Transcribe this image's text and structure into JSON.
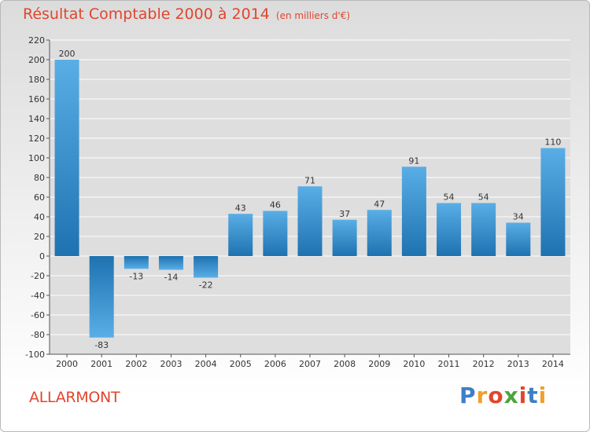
{
  "header": {
    "title": "Résultat Comptable 2000 à 2014",
    "unit": "(en milliers d'€)"
  },
  "footer": {
    "commune": "ALLARMONT",
    "brand": "Proxiti"
  },
  "colors": {
    "title": "#e2452c",
    "bar_dark": "#1e72b0",
    "bar_light": "#5aaee6",
    "grid": "#ffffff"
  },
  "chart_data": {
    "type": "bar",
    "title": "Résultat Comptable 2000 à 2014",
    "subtitle": "(en milliers d'€)",
    "categories": [
      "2000",
      "2001",
      "2002",
      "2003",
      "2004",
      "2005",
      "2006",
      "2007",
      "2008",
      "2009",
      "2010",
      "2011",
      "2012",
      "2013",
      "2014"
    ],
    "values": [
      200,
      -83,
      -13,
      -14,
      -22,
      43,
      46,
      71,
      37,
      47,
      91,
      54,
      54,
      34,
      110
    ],
    "ylim": [
      -100,
      220
    ],
    "yticks": [
      -100,
      -80,
      -60,
      -40,
      -20,
      0,
      20,
      40,
      60,
      80,
      100,
      120,
      140,
      160,
      180,
      200,
      220
    ],
    "grid": true,
    "legend": "none"
  }
}
